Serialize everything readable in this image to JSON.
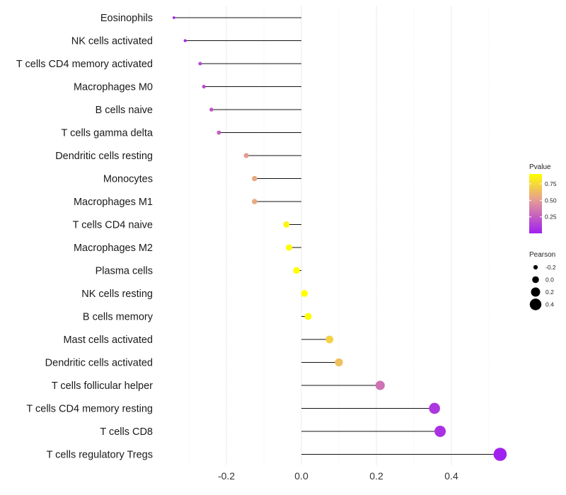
{
  "chart_data": {
    "type": "lollipop",
    "xlim": [
      -0.35,
      0.55
    ],
    "x_ticks": [
      -0.2,
      0.0,
      0.2,
      0.4
    ],
    "x_tick_labels": [
      "-0.2",
      "0.0",
      "0.2",
      "0.4"
    ],
    "grid": true,
    "points": [
      {
        "label": "Eosinophils",
        "pearson": -0.34,
        "pvalue": 0.02
      },
      {
        "label": "NK cells activated",
        "pearson": -0.31,
        "pvalue": 0.05
      },
      {
        "label": "T cells CD4 memory activated",
        "pearson": -0.27,
        "pvalue": 0.16
      },
      {
        "label": "Macrophages M0",
        "pearson": -0.26,
        "pvalue": 0.18
      },
      {
        "label": "B cells naive",
        "pearson": -0.24,
        "pvalue": 0.22
      },
      {
        "label": "T cells gamma delta",
        "pearson": -0.22,
        "pvalue": 0.26
      },
      {
        "label": "Dendritic cells resting",
        "pearson": -0.147,
        "pvalue": 0.5
      },
      {
        "label": "Monocytes",
        "pearson": -0.125,
        "pvalue": 0.56
      },
      {
        "label": "Macrophages M1",
        "pearson": -0.125,
        "pvalue": 0.56
      },
      {
        "label": "T cells CD4 naive",
        "pearson": -0.04,
        "pvalue": 0.86
      },
      {
        "label": "Macrophages M2",
        "pearson": -0.033,
        "pvalue": 0.88
      },
      {
        "label": "Plasma cells",
        "pearson": -0.013,
        "pvalue": 0.95
      },
      {
        "label": "NK cells resting",
        "pearson": 0.008,
        "pvalue": 0.97
      },
      {
        "label": "B cells memory",
        "pearson": 0.018,
        "pvalue": 0.94
      },
      {
        "label": "Mast cells activated",
        "pearson": 0.075,
        "pvalue": 0.72
      },
      {
        "label": "Dendritic cells activated",
        "pearson": 0.1,
        "pvalue": 0.65
      },
      {
        "label": "T cells follicular helper",
        "pearson": 0.21,
        "pvalue": 0.33
      },
      {
        "label": "T cells CD4 memory resting",
        "pearson": 0.355,
        "pvalue": 0.09
      },
      {
        "label": "T cells CD8",
        "pearson": 0.37,
        "pvalue": 0.07
      },
      {
        "label": "T cells regulatory  Tregs",
        "pearson": 0.53,
        "pvalue": 0.01
      }
    ],
    "legend_pvalue": {
      "title": "Pvalue",
      "ticks": [
        0.25,
        0.5,
        0.75
      ],
      "tick_labels": [
        "0.25",
        "0.50",
        "0.75"
      ],
      "range": [
        0.0,
        0.9
      ],
      "colors": [
        "#a020f0",
        "#e59a96",
        "#ffff00"
      ]
    },
    "legend_pearson": {
      "title": "Pearson",
      "values": [
        -0.2,
        0.0,
        0.2,
        0.4
      ],
      "labels": [
        "-0.2",
        "0.0",
        "0.2",
        "0.4"
      ]
    }
  }
}
